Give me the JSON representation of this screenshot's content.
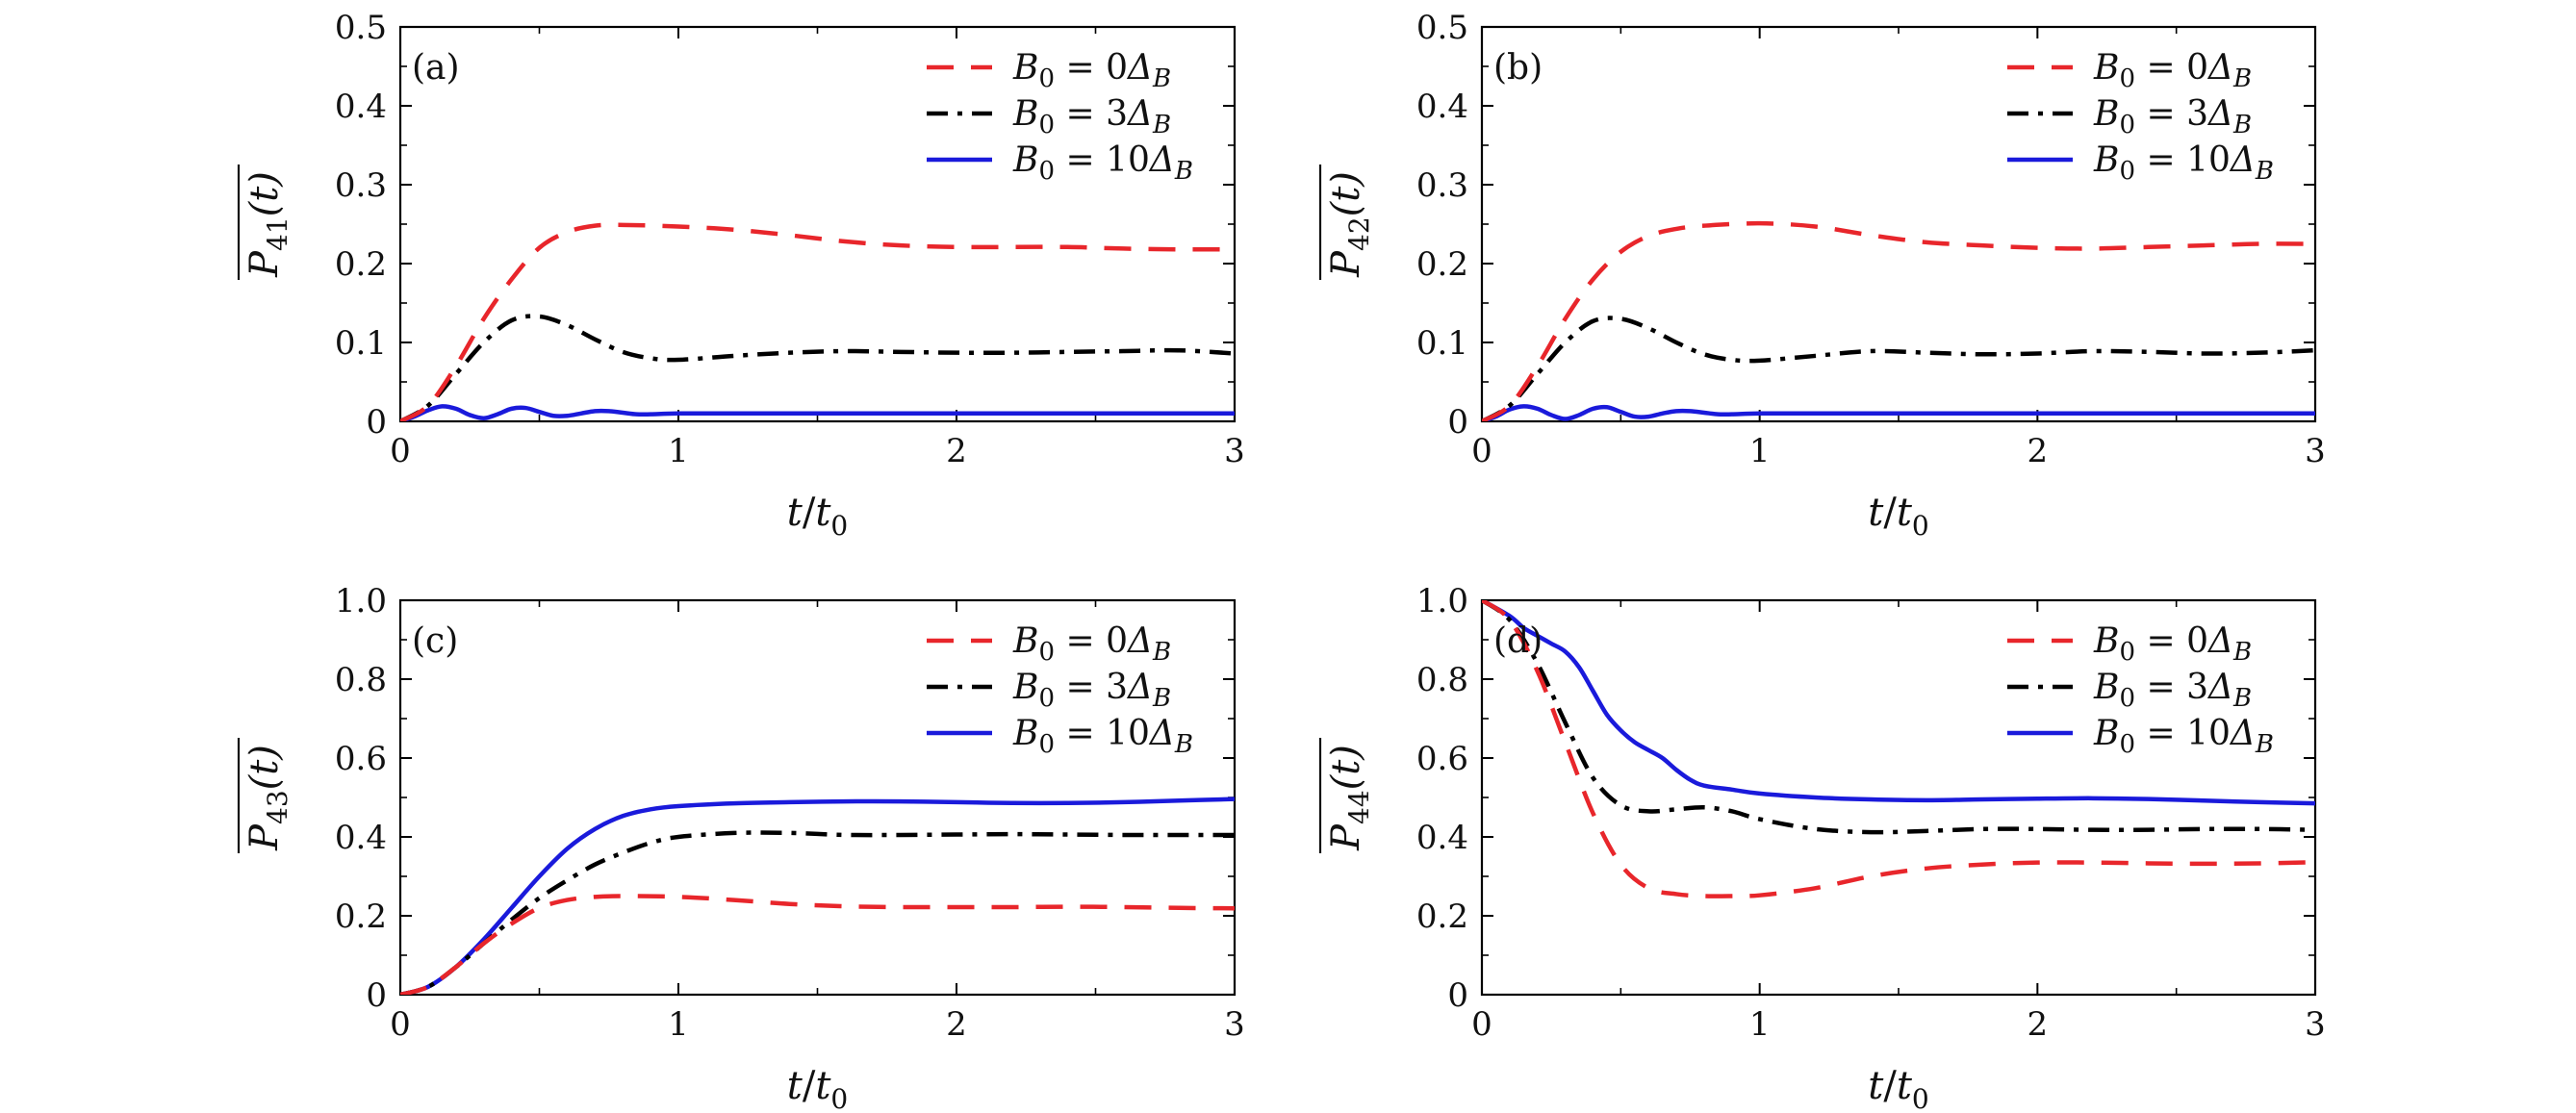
{
  "legend_labels": [
    "B0 = 0ΔB",
    "B0 = 3ΔB",
    "B0 = 10ΔB"
  ],
  "styles": {
    "B0 = 0ΔB": {
      "color": "#e8262b",
      "dash": "28 18"
    },
    "B0 = 3ΔB": {
      "color": "#000000",
      "dash": "22 10 5 10"
    },
    "B0 = 10ΔB": {
      "color": "#1a1adb",
      "dash": ""
    }
  },
  "chart_data": [
    {
      "type": "line",
      "panel_label": "(a)",
      "ylabel": {
        "main": "P",
        "sub": "41",
        "arg": "(t)"
      },
      "xlabel": {
        "main": "t",
        "sep": "/",
        "main2": "t",
        "sub": "0"
      },
      "xlim": [
        0,
        3
      ],
      "ylim": [
        0,
        0.5
      ],
      "xticks": [
        0,
        1,
        2,
        3
      ],
      "yticks": [
        0,
        0.1,
        0.2,
        0.3,
        0.4,
        0.5
      ],
      "yticklabels": [
        "0",
        "0.1",
        "0.2",
        "0.3",
        "0.4",
        "0.5"
      ],
      "legend": "top-right",
      "series": [
        {
          "name": "B0 = 0ΔB",
          "x": [
            0,
            0.1,
            0.2,
            0.3,
            0.4,
            0.5,
            0.6,
            0.7,
            0.8,
            1.0,
            1.2,
            1.4,
            1.6,
            1.8,
            2.0,
            2.2,
            2.4,
            2.6,
            2.8,
            3.0
          ],
          "y": [
            0,
            0.02,
            0.07,
            0.13,
            0.18,
            0.22,
            0.24,
            0.248,
            0.249,
            0.247,
            0.243,
            0.236,
            0.228,
            0.223,
            0.221,
            0.221,
            0.221,
            0.219,
            0.218,
            0.218
          ]
        },
        {
          "name": "B0 = 3ΔB",
          "x": [
            0,
            0.1,
            0.2,
            0.3,
            0.4,
            0.5,
            0.6,
            0.7,
            0.8,
            0.9,
            1.0,
            1.2,
            1.4,
            1.6,
            1.8,
            2.0,
            2.2,
            2.4,
            2.6,
            2.8,
            3.0
          ],
          "y": [
            0,
            0.02,
            0.06,
            0.1,
            0.128,
            0.133,
            0.122,
            0.104,
            0.088,
            0.08,
            0.078,
            0.083,
            0.087,
            0.089,
            0.088,
            0.087,
            0.087,
            0.088,
            0.089,
            0.09,
            0.086
          ]
        },
        {
          "name": "B0 = 10ΔB",
          "x": [
            0,
            0.05,
            0.1,
            0.15,
            0.2,
            0.25,
            0.3,
            0.35,
            0.4,
            0.45,
            0.5,
            0.55,
            0.6,
            0.65,
            0.7,
            0.75,
            0.8,
            0.85,
            0.9,
            1.0,
            1.2,
            1.5,
            2.0,
            2.5,
            3.0
          ],
          "y": [
            0,
            0.006,
            0.014,
            0.019,
            0.016,
            0.008,
            0.004,
            0.009,
            0.016,
            0.017,
            0.012,
            0.007,
            0.007,
            0.01,
            0.013,
            0.013,
            0.011,
            0.009,
            0.009,
            0.01,
            0.01,
            0.01,
            0.01,
            0.01,
            0.01
          ]
        }
      ]
    },
    {
      "type": "line",
      "panel_label": "(b)",
      "ylabel": {
        "main": "P",
        "sub": "42",
        "arg": "(t)"
      },
      "xlabel": {
        "main": "t",
        "sep": "/",
        "main2": "t",
        "sub": "0"
      },
      "xlim": [
        0,
        3
      ],
      "ylim": [
        0,
        0.5
      ],
      "xticks": [
        0,
        1,
        2,
        3
      ],
      "yticks": [
        0,
        0.1,
        0.2,
        0.3,
        0.4,
        0.5
      ],
      "yticklabels": [
        "0",
        "0.1",
        "0.2",
        "0.3",
        "0.4",
        "0.5"
      ],
      "legend": "top-right",
      "series": [
        {
          "name": "B0 = 0ΔB",
          "x": [
            0,
            0.1,
            0.2,
            0.3,
            0.4,
            0.5,
            0.6,
            0.7,
            0.8,
            1.0,
            1.2,
            1.4,
            1.6,
            1.8,
            2.0,
            2.2,
            2.4,
            2.6,
            2.8,
            3.0
          ],
          "y": [
            0,
            0.02,
            0.07,
            0.13,
            0.18,
            0.215,
            0.235,
            0.244,
            0.248,
            0.251,
            0.247,
            0.236,
            0.227,
            0.223,
            0.22,
            0.219,
            0.221,
            0.223,
            0.225,
            0.225
          ]
        },
        {
          "name": "B0 = 3ΔB",
          "x": [
            0,
            0.1,
            0.2,
            0.3,
            0.4,
            0.5,
            0.6,
            0.7,
            0.8,
            0.9,
            1.0,
            1.2,
            1.4,
            1.6,
            1.8,
            2.0,
            2.2,
            2.4,
            2.6,
            2.8,
            3.0
          ],
          "y": [
            0,
            0.02,
            0.06,
            0.1,
            0.127,
            0.13,
            0.118,
            0.1,
            0.085,
            0.078,
            0.077,
            0.083,
            0.089,
            0.087,
            0.085,
            0.086,
            0.089,
            0.088,
            0.086,
            0.087,
            0.09
          ]
        },
        {
          "name": "B0 = 10ΔB",
          "x": [
            0,
            0.05,
            0.1,
            0.15,
            0.2,
            0.25,
            0.3,
            0.35,
            0.4,
            0.45,
            0.5,
            0.55,
            0.6,
            0.65,
            0.7,
            0.75,
            0.8,
            0.85,
            0.9,
            1.0,
            1.2,
            1.5,
            2.0,
            2.5,
            3.0
          ],
          "y": [
            0,
            0.006,
            0.015,
            0.019,
            0.016,
            0.008,
            0.003,
            0.008,
            0.016,
            0.018,
            0.012,
            0.006,
            0.006,
            0.01,
            0.013,
            0.013,
            0.011,
            0.009,
            0.009,
            0.01,
            0.01,
            0.01,
            0.01,
            0.01,
            0.01
          ]
        }
      ]
    },
    {
      "type": "line",
      "panel_label": "(c)",
      "ylabel": {
        "main": "P",
        "sub": "43",
        "arg": "(t)"
      },
      "xlabel": {
        "main": "t",
        "sep": "/",
        "main2": "t",
        "sub": "0"
      },
      "xlim": [
        0,
        3
      ],
      "ylim": [
        0,
        1.0
      ],
      "xticks": [
        0,
        1,
        2,
        3
      ],
      "yticks": [
        0,
        0.2,
        0.4,
        0.6,
        0.8,
        1.0
      ],
      "yticklabels": [
        "0",
        "0.2",
        "0.4",
        "0.6",
        "0.8",
        "1.0"
      ],
      "legend": "top-right",
      "series": [
        {
          "name": "B0 = 0ΔB",
          "x": [
            0,
            0.1,
            0.2,
            0.3,
            0.4,
            0.5,
            0.6,
            0.7,
            0.8,
            1.0,
            1.2,
            1.4,
            1.6,
            1.8,
            2.0,
            2.2,
            2.4,
            2.6,
            2.8,
            3.0
          ],
          "y": [
            0,
            0.02,
            0.07,
            0.13,
            0.18,
            0.22,
            0.24,
            0.248,
            0.25,
            0.248,
            0.24,
            0.23,
            0.224,
            0.222,
            0.222,
            0.222,
            0.223,
            0.222,
            0.22,
            0.219
          ]
        },
        {
          "name": "B0 = 3ΔB",
          "x": [
            0,
            0.1,
            0.2,
            0.3,
            0.4,
            0.5,
            0.6,
            0.7,
            0.8,
            0.9,
            1.0,
            1.2,
            1.4,
            1.6,
            1.8,
            2.0,
            2.2,
            2.4,
            2.6,
            2.8,
            3.0
          ],
          "y": [
            0,
            0.02,
            0.07,
            0.13,
            0.19,
            0.245,
            0.29,
            0.33,
            0.36,
            0.385,
            0.4,
            0.41,
            0.41,
            0.405,
            0.405,
            0.406,
            0.407,
            0.406,
            0.405,
            0.405,
            0.405
          ]
        },
        {
          "name": "B0 = 10ΔB",
          "x": [
            0,
            0.1,
            0.2,
            0.3,
            0.4,
            0.5,
            0.6,
            0.7,
            0.8,
            0.9,
            1.0,
            1.2,
            1.4,
            1.6,
            1.8,
            2.0,
            2.2,
            2.4,
            2.6,
            2.8,
            3.0
          ],
          "y": [
            0,
            0.02,
            0.07,
            0.14,
            0.22,
            0.3,
            0.37,
            0.42,
            0.453,
            0.47,
            0.478,
            0.485,
            0.488,
            0.49,
            0.49,
            0.488,
            0.486,
            0.486,
            0.488,
            0.492,
            0.496
          ]
        }
      ]
    },
    {
      "type": "line",
      "panel_label": "(d)",
      "ylabel": {
        "main": "P",
        "sub": "44",
        "arg": "(t)"
      },
      "xlabel": {
        "main": "t",
        "sep": "/",
        "main2": "t",
        "sub": "0"
      },
      "xlim": [
        0,
        3
      ],
      "ylim": [
        0,
        1.0
      ],
      "xticks": [
        0,
        1,
        2,
        3
      ],
      "yticks": [
        0,
        0.2,
        0.4,
        0.6,
        0.8,
        1.0
      ],
      "yticklabels": [
        "0",
        "0.2",
        "0.4",
        "0.6",
        "0.8",
        "1.0"
      ],
      "legend": "top-right",
      "series": [
        {
          "name": "B0 = 0ΔB",
          "x": [
            0,
            0.1,
            0.2,
            0.3,
            0.4,
            0.5,
            0.6,
            0.7,
            0.8,
            0.9,
            1.0,
            1.2,
            1.4,
            1.6,
            1.8,
            2.0,
            2.2,
            2.4,
            2.6,
            2.8,
            3.0
          ],
          "y": [
            1.0,
            0.95,
            0.82,
            0.64,
            0.46,
            0.33,
            0.27,
            0.255,
            0.25,
            0.25,
            0.252,
            0.27,
            0.3,
            0.32,
            0.33,
            0.335,
            0.335,
            0.333,
            0.332,
            0.333,
            0.336
          ]
        },
        {
          "name": "B0 = 3ΔB",
          "x": [
            0,
            0.1,
            0.2,
            0.3,
            0.4,
            0.5,
            0.6,
            0.7,
            0.8,
            0.9,
            1.0,
            1.2,
            1.4,
            1.6,
            1.8,
            2.0,
            2.2,
            2.4,
            2.6,
            2.8,
            3.0
          ],
          "y": [
            1.0,
            0.95,
            0.84,
            0.69,
            0.55,
            0.48,
            0.465,
            0.47,
            0.475,
            0.465,
            0.445,
            0.42,
            0.412,
            0.415,
            0.42,
            0.42,
            0.418,
            0.418,
            0.42,
            0.42,
            0.418
          ]
        },
        {
          "name": "B0 = 10ΔB",
          "x": [
            0,
            0.1,
            0.15,
            0.2,
            0.25,
            0.3,
            0.35,
            0.4,
            0.45,
            0.5,
            0.55,
            0.6,
            0.65,
            0.7,
            0.75,
            0.8,
            0.9,
            1.0,
            1.2,
            1.4,
            1.6,
            1.8,
            2.0,
            2.2,
            2.4,
            2.6,
            2.8,
            3.0
          ],
          "y": [
            1.0,
            0.96,
            0.93,
            0.91,
            0.89,
            0.87,
            0.83,
            0.77,
            0.71,
            0.67,
            0.64,
            0.62,
            0.6,
            0.57,
            0.545,
            0.53,
            0.52,
            0.51,
            0.5,
            0.495,
            0.493,
            0.495,
            0.497,
            0.498,
            0.496,
            0.492,
            0.488,
            0.485
          ]
        }
      ]
    }
  ]
}
